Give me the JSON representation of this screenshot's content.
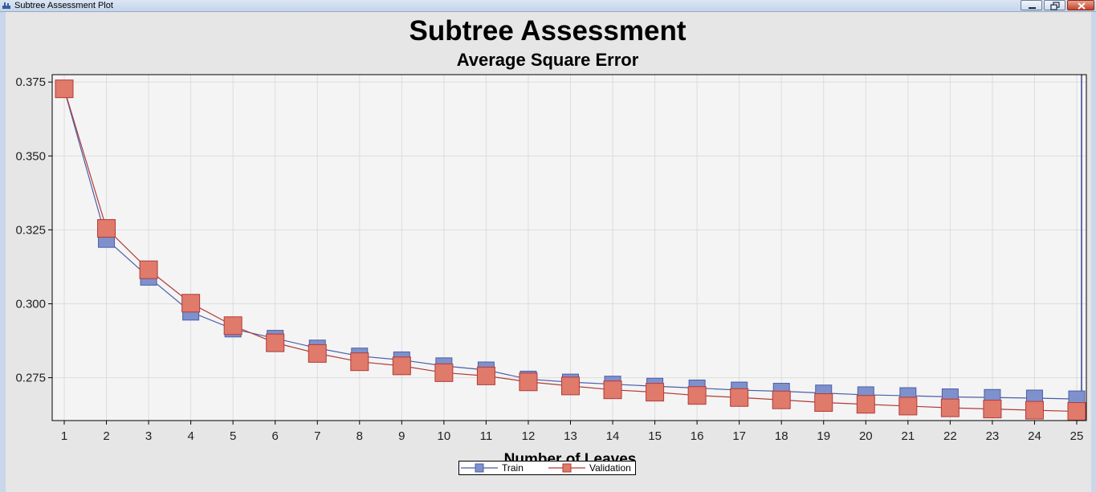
{
  "window": {
    "title": "Subtree Assessment Plot"
  },
  "colors": {
    "train": "#4b5ea8",
    "train_fill": "#7f91cc",
    "validation": "#b23a3a",
    "validation_fill": "#e07a6a",
    "selected_line": "#20208a",
    "plot_background": "#f4f4f4",
    "grid": "#dddddd"
  },
  "chart_data": {
    "type": "line",
    "title": "Subtree Assessment",
    "subtitle": "Average Square Error",
    "xlabel": "Number of Leaves",
    "ylabel": "",
    "x": [
      1,
      2,
      3,
      4,
      5,
      6,
      7,
      8,
      9,
      10,
      11,
      12,
      13,
      14,
      15,
      16,
      17,
      18,
      19,
      20,
      21,
      22,
      23,
      24,
      25
    ],
    "ylim": [
      0.2605,
      0.3775
    ],
    "yticks": [
      0.275,
      0.3,
      0.325,
      0.35,
      0.375
    ],
    "ytick_labels": [
      "0.275",
      "0.300",
      "0.325",
      "0.350",
      "0.375"
    ],
    "grid": true,
    "legend_position": "bottom-center",
    "selected_x": 25,
    "series": [
      {
        "name": "Train",
        "values": [
          0.3725,
          0.3218,
          0.309,
          0.2972,
          0.2915,
          0.2883,
          0.285,
          0.2823,
          0.281,
          0.279,
          0.2776,
          0.2745,
          0.2735,
          0.2728,
          0.2721,
          0.2715,
          0.2708,
          0.2704,
          0.2698,
          0.2692,
          0.2689,
          0.2685,
          0.2683,
          0.2681,
          0.2678
        ]
      },
      {
        "name": "Validation",
        "values": [
          0.3727,
          0.3255,
          0.3115,
          0.3002,
          0.2926,
          0.2868,
          0.2832,
          0.2804,
          0.279,
          0.2767,
          0.2756,
          0.2736,
          0.2722,
          0.2709,
          0.2701,
          0.269,
          0.2683,
          0.2675,
          0.2666,
          0.266,
          0.2654,
          0.2648,
          0.2644,
          0.264,
          0.2636
        ]
      }
    ]
  }
}
